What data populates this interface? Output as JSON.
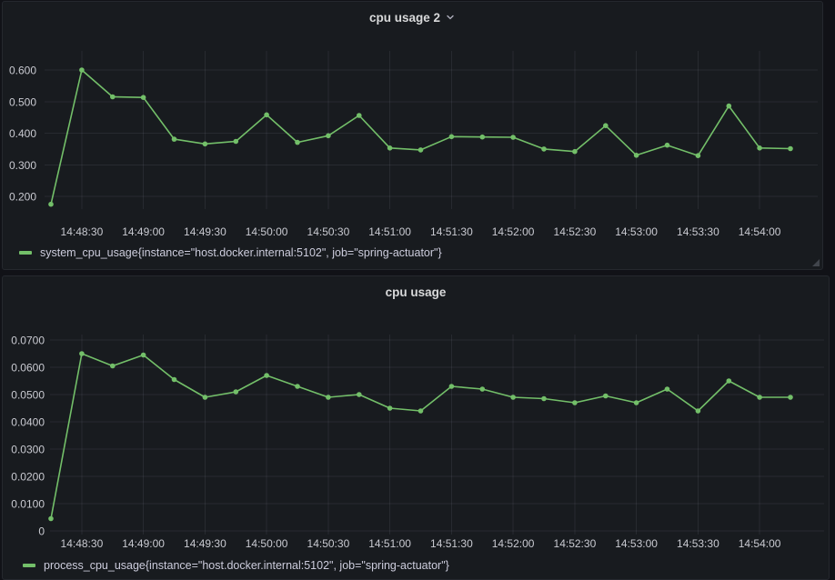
{
  "colors": {
    "page_bg": "#111217",
    "panel_bg": "#181b1f",
    "panel_border": "#25282e",
    "series_green": "#73bf69",
    "grid": "rgba(204,204,220,0.09)",
    "text": "#ccccdc"
  },
  "panels": [
    {
      "title": "cpu usage 2",
      "has_menu_chevron": true,
      "legend": "system_cpu_usage{instance=\"host.docker.internal:5102\", job=\"spring-actuator\"}"
    },
    {
      "title": "cpu usage",
      "has_menu_chevron": false,
      "legend": "process_cpu_usage{instance=\"host.docker.internal:5102\", job=\"spring-actuator\"}"
    }
  ],
  "chart_data": [
    {
      "type": "line",
      "title": "cpu usage 2",
      "xlabel": "",
      "ylabel": "",
      "grid": true,
      "legend_position": "bottom",
      "point_markers": true,
      "x_interval_seconds": 15,
      "x": [
        "14:48:15",
        "14:48:30",
        "14:48:45",
        "14:49:00",
        "14:49:15",
        "14:49:30",
        "14:49:45",
        "14:50:00",
        "14:50:15",
        "14:50:30",
        "14:50:45",
        "14:51:00",
        "14:51:15",
        "14:51:30",
        "14:51:45",
        "14:52:00",
        "14:52:15",
        "14:52:30",
        "14:52:45",
        "14:53:00",
        "14:53:15",
        "14:53:30",
        "14:53:45",
        "14:54:00",
        "14:54:15"
      ],
      "series": [
        {
          "name": "system_cpu_usage{instance=\"host.docker.internal:5102\", job=\"spring-actuator\"}",
          "color": "#73bf69",
          "values": [
            0.175,
            0.6,
            0.515,
            0.513,
            0.381,
            0.366,
            0.374,
            0.458,
            0.371,
            0.392,
            0.456,
            0.353,
            0.347,
            0.389,
            0.388,
            0.387,
            0.35,
            0.342,
            0.424,
            0.33,
            0.362,
            0.329,
            0.486,
            0.353,
            0.351
          ]
        }
      ],
      "x_axis": {
        "tick_labels": [
          "14:48:30",
          "14:49:00",
          "14:49:30",
          "14:50:00",
          "14:50:30",
          "14:51:00",
          "14:51:30",
          "14:52:00",
          "14:52:30",
          "14:53:00",
          "14:53:30",
          "14:54:00"
        ],
        "tick_point_indices": [
          1,
          3,
          5,
          7,
          9,
          11,
          13,
          15,
          17,
          19,
          21,
          23
        ]
      },
      "y_axis": {
        "tick_values": [
          0.2,
          0.3,
          0.4,
          0.5,
          0.6
        ],
        "tick_labels": [
          "0.200",
          "0.300",
          "0.400",
          "0.500",
          "0.600"
        ]
      },
      "ylim": [
        0.13,
        0.64
      ]
    },
    {
      "type": "line",
      "title": "cpu usage",
      "xlabel": "",
      "ylabel": "",
      "grid": true,
      "legend_position": "bottom",
      "point_markers": true,
      "x_interval_seconds": 15,
      "x": [
        "14:48:15",
        "14:48:30",
        "14:48:45",
        "14:49:00",
        "14:49:15",
        "14:49:30",
        "14:49:45",
        "14:50:00",
        "14:50:15",
        "14:50:30",
        "14:50:45",
        "14:51:00",
        "14:51:15",
        "14:51:30",
        "14:51:45",
        "14:52:00",
        "14:52:15",
        "14:52:30",
        "14:52:45",
        "14:53:00",
        "14:53:15",
        "14:53:30",
        "14:53:45",
        "14:54:00",
        "14:54:15"
      ],
      "series": [
        {
          "name": "process_cpu_usage{instance=\"host.docker.internal:5102\", job=\"spring-actuator\"}",
          "color": "#73bf69",
          "values": [
            0.0045,
            0.065,
            0.0605,
            0.0645,
            0.0555,
            0.049,
            0.051,
            0.057,
            0.053,
            0.049,
            0.05,
            0.045,
            0.044,
            0.053,
            0.052,
            0.049,
            0.0485,
            0.047,
            0.0495,
            0.047,
            0.052,
            0.044,
            0.055,
            0.049,
            0.049
          ]
        }
      ],
      "x_axis": {
        "tick_labels": [
          "14:48:30",
          "14:49:00",
          "14:49:30",
          "14:50:00",
          "14:50:30",
          "14:51:00",
          "14:51:30",
          "14:52:00",
          "14:52:30",
          "14:53:00",
          "14:53:30",
          "14:54:00"
        ],
        "tick_point_indices": [
          1,
          3,
          5,
          7,
          9,
          11,
          13,
          15,
          17,
          19,
          21,
          23
        ]
      },
      "y_axis": {
        "tick_values": [
          0,
          0.01,
          0.02,
          0.03,
          0.04,
          0.05,
          0.06,
          0.07
        ],
        "tick_labels": [
          "0",
          "0.0100",
          "0.0200",
          "0.0300",
          "0.0400",
          "0.0500",
          "0.0600",
          "0.0700"
        ]
      },
      "ylim": [
        0,
        0.0735
      ]
    }
  ]
}
